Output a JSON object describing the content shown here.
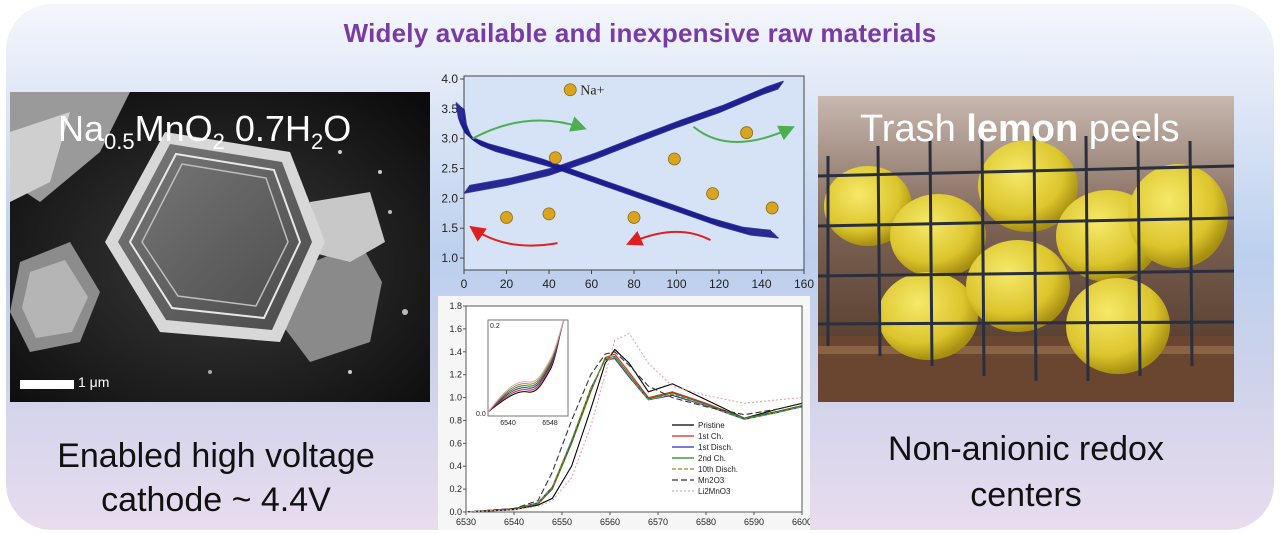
{
  "headline": "Widely available and inexpensive raw materials",
  "left": {
    "formula": {
      "na": "Na",
      "na_sub": "0.5",
      "mn": "MnO",
      "o_sub": "2",
      "water": " 0.7H",
      "h_sub": "2",
      "end": "O"
    },
    "scale_label": "1 μm",
    "caption_line1": "Enabled high voltage",
    "caption_line2": "cathode ~ 4.4V"
  },
  "right": {
    "title_pre": "Trash ",
    "title_bold": "lemon",
    "title_post": " peels",
    "caption_line1": "Non-anionic redox",
    "caption_line2": "centers"
  },
  "colors": {
    "headline": "#7a3aa6",
    "curves": "#1a1a8c",
    "ion": "#d9a520",
    "arrow_green": "#4caf50",
    "arrow_red": "#e02020"
  },
  "chart_data": [
    {
      "type": "line",
      "x_ticks": [
        0,
        20,
        40,
        60,
        80,
        100,
        120,
        140,
        160
      ],
      "y_ticks": [
        1.0,
        1.5,
        2.0,
        2.5,
        3.0,
        3.5,
        4.0
      ],
      "xlim": [
        0,
        160
      ],
      "ylim": [
        0.8,
        4.05
      ],
      "legend_ion": "Na+",
      "series": [
        {
          "x": [
            0,
            20,
            40,
            60,
            80,
            100,
            120,
            140,
            148
          ],
          "y": [
            2.15,
            2.28,
            2.45,
            2.7,
            2.98,
            3.25,
            3.5,
            3.8,
            3.9
          ]
        },
        {
          "x": [
            0,
            1,
            2,
            4,
            8,
            15,
            25,
            40,
            60,
            80,
            100,
            120,
            135,
            148
          ],
          "y": [
            3.55,
            3.3,
            3.2,
            3.05,
            2.95,
            2.85,
            2.75,
            2.6,
            2.35,
            2.1,
            1.85,
            1.6,
            1.45,
            1.4
          ]
        }
      ]
    },
    {
      "type": "line",
      "x_ticks": [
        6530,
        6540,
        6550,
        6560,
        6570,
        6580,
        6590,
        6600
      ],
      "y_ticks": [
        0.0,
        0.2,
        0.4,
        0.6,
        0.8,
        1.0,
        1.2,
        1.4,
        1.6,
        1.8
      ],
      "xlim": [
        6530,
        6600
      ],
      "ylim": [
        0,
        1.8
      ],
      "inset": {
        "y_ticks": [
          "0.2",
          "0.0"
        ],
        "x_ticks": [
          "6540",
          "6548"
        ]
      },
      "series": [
        {
          "name": "Pristine",
          "color": "#000000",
          "x": [
            6530,
            6540,
            6545,
            6548,
            6552,
            6556,
            6559,
            6561,
            6564,
            6568,
            6573,
            6580,
            6588,
            6595,
            6600
          ],
          "y": [
            0.0,
            0.02,
            0.06,
            0.12,
            0.4,
            0.9,
            1.3,
            1.42,
            1.3,
            1.05,
            1.12,
            0.98,
            0.82,
            0.9,
            0.95
          ]
        },
        {
          "name": "1st Ch.",
          "color": "#e02020",
          "x": [
            6530,
            6540,
            6545,
            6548,
            6552,
            6556,
            6559,
            6561,
            6564,
            6568,
            6573,
            6580,
            6588,
            6595,
            6600
          ],
          "y": [
            0.0,
            0.03,
            0.07,
            0.2,
            0.6,
            1.05,
            1.35,
            1.38,
            1.22,
            1.0,
            1.05,
            0.95,
            0.82,
            0.88,
            0.93
          ]
        },
        {
          "name": "1st Disch.",
          "color": "#2a2ad0",
          "x": [
            6530,
            6540,
            6545,
            6548,
            6552,
            6556,
            6559,
            6561,
            6564,
            6568,
            6573,
            6580,
            6588,
            6595,
            6600
          ],
          "y": [
            0.0,
            0.03,
            0.08,
            0.22,
            0.62,
            1.08,
            1.33,
            1.34,
            1.18,
            0.98,
            1.02,
            0.93,
            0.81,
            0.87,
            0.92
          ]
        },
        {
          "name": "2nd Ch.",
          "color": "#1a8a1a",
          "x": [
            6530,
            6540,
            6545,
            6548,
            6552,
            6556,
            6559,
            6561,
            6564,
            6568,
            6573,
            6580,
            6588,
            6595,
            6600
          ],
          "y": [
            0.0,
            0.03,
            0.07,
            0.21,
            0.6,
            1.06,
            1.34,
            1.36,
            1.2,
            0.99,
            1.04,
            0.94,
            0.82,
            0.88,
            0.93
          ]
        },
        {
          "name": "10th Disch.",
          "color": "#9a8a2a",
          "x": [
            6530,
            6540,
            6545,
            6548,
            6552,
            6556,
            6559,
            6561,
            6564,
            6568,
            6573,
            6580,
            6588,
            6595,
            6600
          ],
          "y": [
            0.0,
            0.03,
            0.08,
            0.22,
            0.63,
            1.08,
            1.33,
            1.35,
            1.19,
            0.98,
            1.03,
            0.93,
            0.81,
            0.87,
            0.92
          ]
        },
        {
          "name": "Mn2O3",
          "color": "#333333",
          "x": [
            6530,
            6540,
            6545,
            6548,
            6552,
            6556,
            6559,
            6561,
            6564,
            6568,
            6573,
            6580,
            6588,
            6595,
            6600
          ],
          "y": [
            0.0,
            0.03,
            0.1,
            0.35,
            0.8,
            1.2,
            1.38,
            1.4,
            1.28,
            1.1,
            1.0,
            0.92,
            0.85,
            0.9,
            0.95
          ]
        },
        {
          "name": "Li2MnO3",
          "color": "#e8a0b0",
          "x": [
            6530,
            6540,
            6545,
            6548,
            6552,
            6556,
            6559,
            6561,
            6564,
            6568,
            6573,
            6580,
            6588,
            6595,
            6600
          ],
          "y": [
            0.0,
            0.02,
            0.05,
            0.1,
            0.3,
            0.75,
            1.2,
            1.5,
            1.56,
            1.3,
            1.1,
            1.02,
            0.95,
            0.98,
            1.0
          ]
        }
      ]
    }
  ]
}
